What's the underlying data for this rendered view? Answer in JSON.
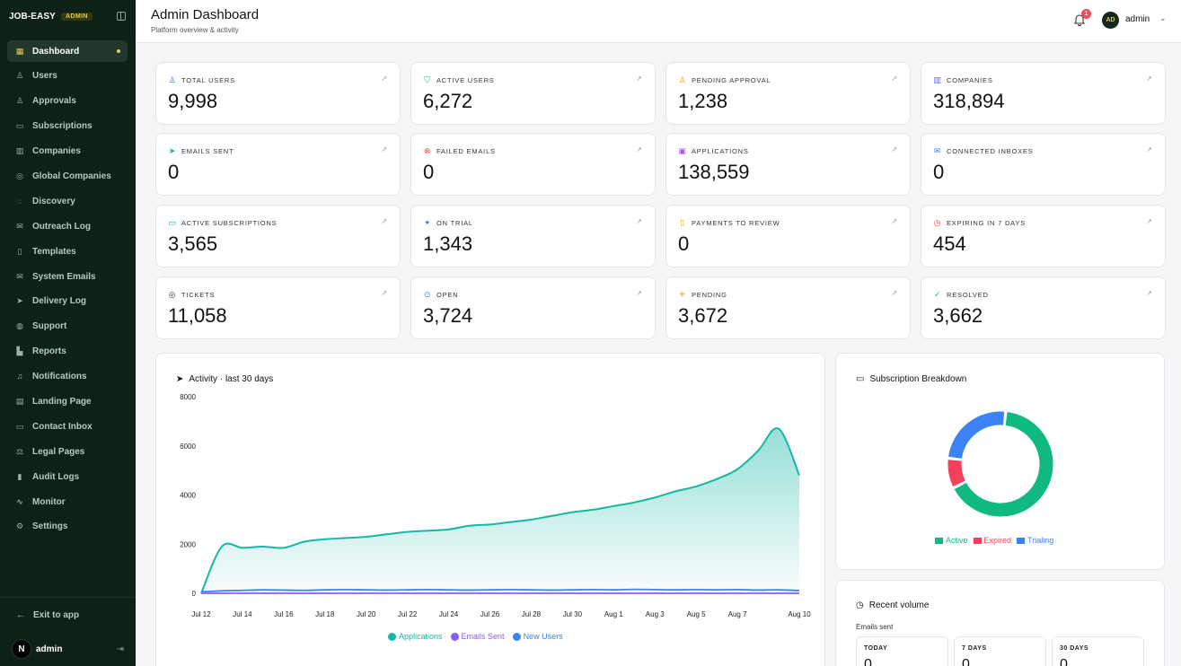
{
  "brand": {
    "name": "JOB-EASY",
    "badge": "ADMIN"
  },
  "sidebar": {
    "items": [
      {
        "label": "Dashboard",
        "icon": "grid-icon",
        "glyph": "▦",
        "active": true
      },
      {
        "label": "Users",
        "icon": "users-icon",
        "glyph": "♙"
      },
      {
        "label": "Approvals",
        "icon": "user-check-icon",
        "glyph": "♙"
      },
      {
        "label": "Subscriptions",
        "icon": "credit-card-icon",
        "glyph": "▭"
      },
      {
        "label": "Companies",
        "icon": "building-icon",
        "glyph": "▥"
      },
      {
        "label": "Global Companies",
        "icon": "globe-icon",
        "glyph": "◎"
      },
      {
        "label": "Discovery",
        "icon": "compass-icon",
        "glyph": "◌"
      },
      {
        "label": "Outreach Log",
        "icon": "mail-icon",
        "glyph": "✉"
      },
      {
        "label": "Templates",
        "icon": "file-icon",
        "glyph": "▯"
      },
      {
        "label": "System Emails",
        "icon": "mail-icon",
        "glyph": "✉"
      },
      {
        "label": "Delivery Log",
        "icon": "send-icon",
        "glyph": "➤"
      },
      {
        "label": "Support",
        "icon": "life-buoy-icon",
        "glyph": "◍"
      },
      {
        "label": "Reports",
        "icon": "bar-chart-icon",
        "glyph": "▙"
      },
      {
        "label": "Notifications",
        "icon": "bell-icon",
        "glyph": "♫"
      },
      {
        "label": "Landing Page",
        "icon": "layout-icon",
        "glyph": "▤"
      },
      {
        "label": "Contact Inbox",
        "icon": "inbox-icon",
        "glyph": "▭"
      },
      {
        "label": "Legal Pages",
        "icon": "scale-icon",
        "glyph": "⚖"
      },
      {
        "label": "Audit Logs",
        "icon": "clipboard-icon",
        "glyph": "▮"
      },
      {
        "label": "Monitor",
        "icon": "activity-icon",
        "glyph": "∿"
      },
      {
        "label": "Settings",
        "icon": "gear-icon",
        "glyph": "⚙"
      }
    ],
    "exit_label": "Exit to app",
    "user_initial": "N",
    "user_name": "admin"
  },
  "header": {
    "title": "Admin Dashboard",
    "subtitle": "Platform overview & activity",
    "notification_count": "1",
    "avatar_initials": "AD",
    "user_name": "admin"
  },
  "stats": [
    {
      "label": "TOTAL USERS",
      "value": "9,998",
      "icon": "users-icon",
      "glyph": "♙",
      "color": "#3b82f6"
    },
    {
      "label": "ACTIVE USERS",
      "value": "6,272",
      "icon": "shield-check-icon",
      "glyph": "⛉",
      "color": "#10b981"
    },
    {
      "label": "PENDING APPROVAL",
      "value": "1,238",
      "icon": "user-clock-icon",
      "glyph": "♙",
      "color": "#f59e0b"
    },
    {
      "label": "COMPANIES",
      "value": "318,894",
      "icon": "building-icon",
      "glyph": "▥",
      "color": "#6366f1"
    },
    {
      "label": "EMAILS SENT",
      "value": "0",
      "icon": "send-icon",
      "glyph": "➤",
      "color": "#10b981"
    },
    {
      "label": "FAILED EMAILS",
      "value": "0",
      "icon": "x-circle-icon",
      "glyph": "⊗",
      "color": "#ef4444"
    },
    {
      "label": "APPLICATIONS",
      "value": "138,559",
      "icon": "briefcase-icon",
      "glyph": "▣",
      "color": "#a855f7"
    },
    {
      "label": "CONNECTED INBOXES",
      "value": "0",
      "icon": "mail-icon",
      "glyph": "✉",
      "color": "#3b82f6"
    },
    {
      "label": "ACTIVE SUBSCRIPTIONS",
      "value": "3,565",
      "icon": "credit-card-icon",
      "glyph": "▭",
      "color": "#10b981"
    },
    {
      "label": "ON TRIAL",
      "value": "1,343",
      "icon": "sparkles-icon",
      "glyph": "✦",
      "color": "#3b82f6"
    },
    {
      "label": "PAYMENTS TO REVIEW",
      "value": "0",
      "icon": "receipt-icon",
      "glyph": "▯",
      "color": "#f59e0b"
    },
    {
      "label": "EXPIRING IN 7 DAYS",
      "value": "454",
      "icon": "clock-icon",
      "glyph": "◷",
      "color": "#ef4444"
    },
    {
      "label": "TICKETS",
      "value": "11,058",
      "icon": "life-buoy-icon",
      "glyph": "◎",
      "color": "#333333"
    },
    {
      "label": "OPEN",
      "value": "3,724",
      "icon": "circle-dot-icon",
      "glyph": "⊙",
      "color": "#3b82f6"
    },
    {
      "label": "PENDING",
      "value": "3,672",
      "icon": "loader-icon",
      "glyph": "✳",
      "color": "#f59e0b"
    },
    {
      "label": "RESOLVED",
      "value": "3,662",
      "icon": "check-circle-icon",
      "glyph": "✓",
      "color": "#10b981"
    }
  ],
  "activity": {
    "title": "Activity · last 30 days",
    "legend": [
      {
        "name": "Applications",
        "color": "#14b8a6"
      },
      {
        "name": "Emails Sent",
        "color": "#8b5cf6"
      },
      {
        "name": "New Users",
        "color": "#3b82f6"
      }
    ]
  },
  "chart_data": [
    {
      "type": "area",
      "title": "Activity · last 30 days",
      "x": [
        "Jul 12",
        "Jul 13",
        "Jul 14",
        "Jul 15",
        "Jul 16",
        "Jul 17",
        "Jul 18",
        "Jul 19",
        "Jul 20",
        "Jul 21",
        "Jul 22",
        "Jul 23",
        "Jul 24",
        "Jul 25",
        "Jul 26",
        "Jul 27",
        "Jul 28",
        "Jul 29",
        "Jul 30",
        "Jul 31",
        "Aug 1",
        "Aug 2",
        "Aug 3",
        "Aug 4",
        "Aug 5",
        "Aug 6",
        "Aug 7",
        "Aug 8",
        "Aug 9",
        "Aug 10"
      ],
      "x_tick_labels": [
        "Jul 12",
        "Jul 14",
        "Jul 16",
        "Jul 18",
        "Jul 20",
        "Jul 22",
        "Jul 24",
        "Jul 26",
        "Jul 28",
        "Jul 30",
        "Aug 1",
        "Aug 3",
        "Aug 5",
        "Aug 7",
        "Aug 10"
      ],
      "y_ticks": [
        "0",
        "2000",
        "4000",
        "6000",
        "8000"
      ],
      "ylim": [
        0,
        8000
      ],
      "grid": false,
      "legend": "bottom",
      "series": [
        {
          "name": "Applications",
          "color": "#14b8a6",
          "values": [
            0,
            1900,
            1850,
            1900,
            1850,
            2100,
            2200,
            2250,
            2300,
            2400,
            2500,
            2550,
            2600,
            2750,
            2800,
            2900,
            3000,
            3150,
            3300,
            3400,
            3550,
            3700,
            3900,
            4150,
            4350,
            4650,
            5050,
            5800,
            6700,
            4800
          ]
        },
        {
          "name": "Emails Sent",
          "color": "#8b5cf6",
          "values": [
            0,
            0,
            0,
            0,
            0,
            0,
            0,
            0,
            0,
            0,
            0,
            0,
            0,
            0,
            0,
            0,
            0,
            0,
            0,
            0,
            0,
            0,
            0,
            0,
            0,
            0,
            0,
            0,
            0,
            0
          ]
        },
        {
          "name": "New Users",
          "color": "#3b82f6",
          "values": [
            60,
            100,
            120,
            140,
            130,
            120,
            140,
            150,
            140,
            130,
            140,
            150,
            140,
            130,
            140,
            150,
            140,
            130,
            140,
            150,
            140,
            160,
            150,
            140,
            150,
            140,
            150,
            130,
            140,
            110
          ]
        }
      ]
    },
    {
      "type": "pie",
      "title": "Subscription Breakdown",
      "legend": "bottom",
      "categories": [
        "Active",
        "Expired",
        "Trialing"
      ],
      "values": [
        3565,
        500,
        1343
      ],
      "colors": [
        "#10b981",
        "#f43f5e",
        "#3b82f6"
      ]
    }
  ],
  "subscription": {
    "title": "Subscription Breakdown",
    "legend": [
      {
        "name": "Active",
        "color": "#10b981"
      },
      {
        "name": "Expired",
        "color": "#f43f5e"
      },
      {
        "name": "Trialing",
        "color": "#3b82f6"
      }
    ]
  },
  "volume": {
    "title": "Recent volume",
    "subtitle": "Emails sent",
    "boxes": [
      {
        "label": "TODAY",
        "value": "0"
      },
      {
        "label": "7 DAYS",
        "value": "0"
      },
      {
        "label": "30 DAYS",
        "value": "0"
      }
    ]
  }
}
